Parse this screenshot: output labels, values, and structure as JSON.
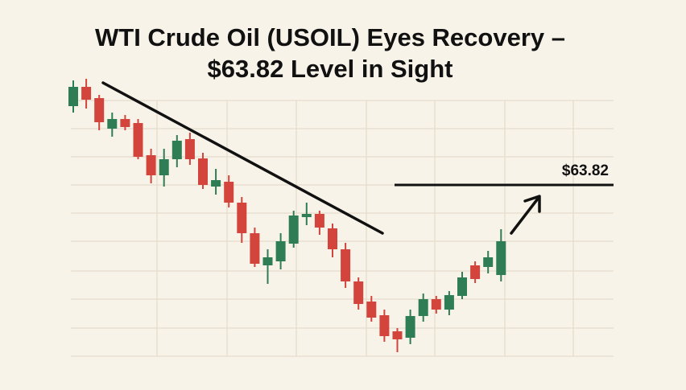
{
  "chart_data": {
    "type": "candlestick",
    "title_lines": [
      "WTI Crude Oil (USOIL) Eyes Recovery –",
      "$63.82 Level in Sight"
    ],
    "up_color": "#2e7d55",
    "down_color": "#d2443c",
    "ylim": [
      55.22,
      69.22
    ],
    "open": [
      67.74,
      68.7,
      68.14,
      66.62,
      67.1,
      66.9,
      65.3,
      64.3,
      65.1,
      66.1,
      65.14,
      63.74,
      63.98,
      62.94,
      61.42,
      59.82,
      60.02,
      60.9,
      62.22,
      62.38,
      61.66,
      60.62,
      59.02,
      58.02,
      57.34,
      56.54,
      56.22,
      57.3,
      58.14,
      57.62,
      58.3,
      59.82,
      59.74,
      59.34
    ],
    "high": [
      69.02,
      69.1,
      68.3,
      67.42,
      67.3,
      67.1,
      65.62,
      65.62,
      66.3,
      66.42,
      65.42,
      64.62,
      64.3,
      63.22,
      61.7,
      60.62,
      61.42,
      62.54,
      62.94,
      62.54,
      61.9,
      60.94,
      59.22,
      58.3,
      57.62,
      56.7,
      57.62,
      58.42,
      58.3,
      58.54,
      59.5,
      60.02,
      60.54,
      61.62
    ],
    "low": [
      67.42,
      67.62,
      66.54,
      66.22,
      66.54,
      65.1,
      63.9,
      63.74,
      64.7,
      64.82,
      63.62,
      63.34,
      62.7,
      60.94,
      59.74,
      58.9,
      59.62,
      60.7,
      61.82,
      61.34,
      60.22,
      58.7,
      57.62,
      57.02,
      56.02,
      55.5,
      55.9,
      57.02,
      57.42,
      57.34,
      58.14,
      58.94,
      59.42,
      59.02
    ],
    "close": [
      68.7,
      68.06,
      66.94,
      67.1,
      66.7,
      65.22,
      64.3,
      65.1,
      66.02,
      65.1,
      63.82,
      64.06,
      62.94,
      61.42,
      59.9,
      60.22,
      61.02,
      62.3,
      62.38,
      61.7,
      60.62,
      59.02,
      57.9,
      57.22,
      56.3,
      56.14,
      57.3,
      58.14,
      57.62,
      58.34,
      59.22,
      59.14,
      60.22,
      61.02
    ],
    "level": {
      "value": 63.82,
      "label": "$63.82"
    }
  }
}
